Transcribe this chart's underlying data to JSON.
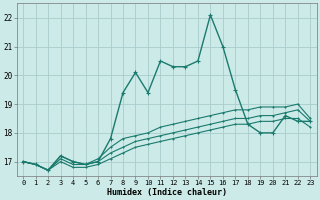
{
  "title": "",
  "xlabel": "Humidex (Indice chaleur)",
  "ylabel": "",
  "xlim": [
    -0.5,
    23.5
  ],
  "ylim": [
    16.5,
    22.5
  ],
  "yticks": [
    17,
    18,
    19,
    20,
    21,
    22
  ],
  "xtick_labels": [
    "0",
    "1",
    "2",
    "3",
    "4",
    "5",
    "6",
    "7",
    "8",
    "9",
    "10",
    "11",
    "12",
    "13",
    "14",
    "15",
    "16",
    "17",
    "18",
    "19",
    "20",
    "21",
    "22",
    "23"
  ],
  "background_color": "#cceae7",
  "grid_color": "#aacccc",
  "line_color": "#1a7a6e",
  "series": [
    [
      17.0,
      16.9,
      16.7,
      17.2,
      17.0,
      16.9,
      17.0,
      17.8,
      19.4,
      20.1,
      19.4,
      20.5,
      20.3,
      20.3,
      20.5,
      22.1,
      21.0,
      19.5,
      18.3,
      18.0,
      18.0,
      18.6,
      18.4,
      18.4
    ],
    [
      17.0,
      16.9,
      16.7,
      17.2,
      17.0,
      16.9,
      17.1,
      17.5,
      17.8,
      17.9,
      18.0,
      18.2,
      18.3,
      18.4,
      18.5,
      18.6,
      18.7,
      18.8,
      18.8,
      18.9,
      18.9,
      18.9,
      19.0,
      18.5
    ],
    [
      17.0,
      16.9,
      16.7,
      17.1,
      16.9,
      16.9,
      17.0,
      17.3,
      17.5,
      17.7,
      17.8,
      17.9,
      18.0,
      18.1,
      18.2,
      18.3,
      18.4,
      18.5,
      18.5,
      18.6,
      18.6,
      18.7,
      18.8,
      18.4
    ],
    [
      17.0,
      16.9,
      16.7,
      17.0,
      16.8,
      16.8,
      16.9,
      17.1,
      17.3,
      17.5,
      17.6,
      17.7,
      17.8,
      17.9,
      18.0,
      18.1,
      18.2,
      18.3,
      18.3,
      18.4,
      18.4,
      18.5,
      18.5,
      18.2
    ]
  ]
}
